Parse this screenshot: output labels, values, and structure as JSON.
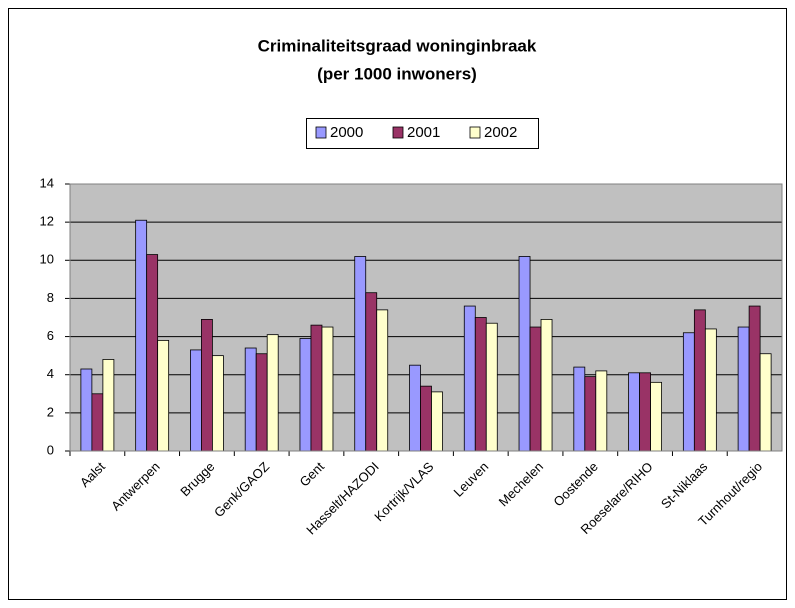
{
  "chart_data": {
    "type": "bar",
    "title": [
      "Criminaliteitsgraad woninginbraak",
      "(per 1000 inwoners)"
    ],
    "categories": [
      "Aalst",
      "Antwerpen",
      "Brugge",
      "Genk/GAOZ",
      "Gent",
      "Hasselt/HAZODI",
      "Kortrijk/VLAS",
      "Leuven",
      "Mechelen",
      "Oostende",
      "Roeselare/RIHO",
      "St-Niklaas",
      "Turnhout/regio"
    ],
    "series": [
      {
        "name": "2000",
        "color": "#9999ff",
        "values": [
          4.3,
          12.1,
          5.3,
          5.4,
          5.9,
          10.2,
          4.5,
          7.6,
          10.2,
          4.4,
          4.1,
          6.2,
          6.5
        ]
      },
      {
        "name": "2001",
        "color": "#993366",
        "values": [
          3.0,
          10.3,
          6.9,
          5.1,
          6.6,
          8.3,
          3.4,
          7.0,
          6.5,
          3.9,
          4.1,
          7.4,
          7.6
        ]
      },
      {
        "name": "2002",
        "color": "#ffffcc",
        "values": [
          4.8,
          5.8,
          5.0,
          6.1,
          6.5,
          7.4,
          3.1,
          6.7,
          6.9,
          4.2,
          3.6,
          6.4,
          5.1
        ]
      }
    ],
    "ylim": [
      0,
      14
    ],
    "yticks": [
      0,
      2,
      4,
      6,
      8,
      10,
      12,
      14
    ],
    "grid": true,
    "legend": "top"
  }
}
